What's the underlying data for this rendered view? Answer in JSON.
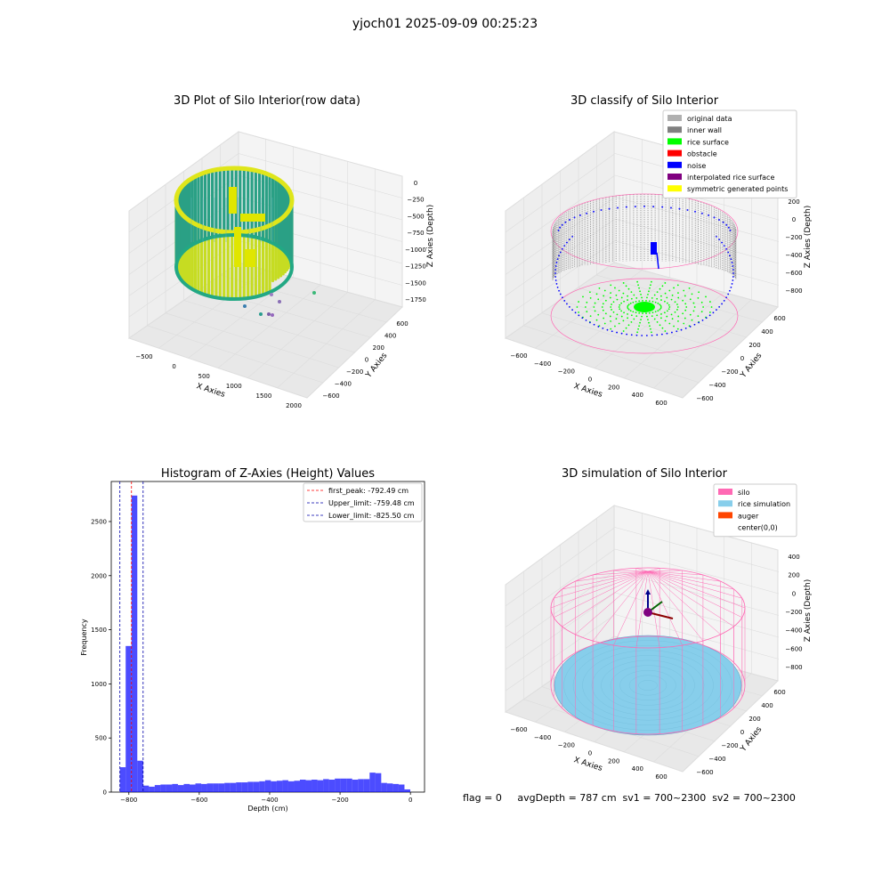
{
  "suptitle": "yjoch01 2025-09-09 00:25:23",
  "footer": "flag = 0     avgDepth = 787 cm  sv1 = 700~2300  sv2 = 700~2300",
  "colors": {
    "pane": "#f2f2f2",
    "grid": "#dcdcdc",
    "hist": "#0000ff",
    "peak": "#ff0000",
    "limit": "#0000aa",
    "silo": "#ff69b4",
    "rice": "#87ceeb",
    "auger": "#ff4500",
    "wall": "#888888",
    "surface": "#00ff00",
    "noise": "#0000ff"
  },
  "panels": {
    "raw": {
      "title": "3D Plot of Silo Interior(row data)",
      "xlabel": "X Axies",
      "ylabel": "Y Axies",
      "zlabel": "Z Axies (Depth)",
      "xticks": [
        "-500",
        "0",
        "500",
        "1000",
        "1500",
        "2000"
      ],
      "yticks": [
        "600",
        "400",
        "200",
        "0",
        "-200",
        "-400",
        "-600"
      ],
      "zticks": [
        "0",
        "-250",
        "-500",
        "-750",
        "-1000",
        "-1250",
        "-1500",
        "-1750"
      ]
    },
    "classify": {
      "title": "3D classify of Silo Interior",
      "xlabel": "X Axies",
      "ylabel": "Y Axies",
      "zlabel": "Z Axies (Depth)",
      "xticks": [
        "-600",
        "-400",
        "-200",
        "0",
        "200",
        "400",
        "600"
      ],
      "yticks": [
        "600",
        "400",
        "200",
        "0",
        "-200",
        "-400",
        "-600"
      ],
      "zticks": [
        "200",
        "0",
        "-200",
        "-400",
        "-600",
        "-800"
      ],
      "legend": [
        {
          "label": "original data",
          "color": "#b0b0b0"
        },
        {
          "label": "inner wall",
          "color": "#808080"
        },
        {
          "label": "rice surface",
          "color": "#00ff00"
        },
        {
          "label": "obstacle",
          "color": "#ff0000"
        },
        {
          "label": "noise",
          "color": "#0000ff"
        },
        {
          "label": "interpolated rice surface",
          "color": "#800080"
        },
        {
          "label": "symmetric generated points",
          "color": "#ffff00"
        }
      ]
    },
    "simulation": {
      "title": "3D simulation of Silo Interior",
      "xlabel": "X Axies",
      "ylabel": "Y Axies",
      "zlabel": "Z Axies (Depth)",
      "xticks": [
        "-600",
        "-400",
        "-200",
        "0",
        "200",
        "400",
        "600"
      ],
      "yticks": [
        "600",
        "400",
        "200",
        "0",
        "-200",
        "-400",
        "-600"
      ],
      "zticks": [
        "400",
        "200",
        "0",
        "-200",
        "-400",
        "-600",
        "-800"
      ],
      "legend": [
        {
          "label": "silo",
          "color": "#ff69b4"
        },
        {
          "label": "rice simulation",
          "color": "#87ceeb"
        },
        {
          "label": "auger",
          "color": "#ff4500"
        },
        {
          "label": "center(0,0)",
          "color": "#ffffff"
        }
      ]
    }
  },
  "chart_data": {
    "type": "bar",
    "title": "Histogram of Z-Axies (Height) Values",
    "xlabel": "Depth (cm)",
    "ylabel": "Frequency",
    "xlim": [
      -850,
      40
    ],
    "ylim": [
      0,
      2870
    ],
    "xticks": [
      -800,
      -600,
      -400,
      -200,
      0
    ],
    "yticks": [
      0,
      500,
      1000,
      1500,
      2000,
      2500
    ],
    "bin_width": 16.5,
    "bin_starts": [
      -825.5,
      -809,
      -792.5,
      -776,
      -759.5,
      -743,
      -726.5,
      -710,
      -693.5,
      -677,
      -660.5,
      -644,
      -627.5,
      -611,
      -594.5,
      -578,
      -561.5,
      -545,
      -528.5,
      -512,
      -495.5,
      -479,
      -462.5,
      -446,
      -429.5,
      -413,
      -396.5,
      -380,
      -363.5,
      -347,
      -330.5,
      -314,
      -297.5,
      -281,
      -264.5,
      -248,
      -231.5,
      -215,
      -198.5,
      -182,
      -165.5,
      -149,
      -132.5,
      -116,
      -99.5,
      -83,
      -66.5,
      -50,
      -33.5,
      -17
    ],
    "values": [
      230,
      1350,
      2740,
      290,
      60,
      50,
      65,
      70,
      70,
      75,
      65,
      75,
      70,
      80,
      75,
      80,
      80,
      80,
      85,
      85,
      90,
      90,
      95,
      95,
      100,
      110,
      100,
      105,
      110,
      100,
      105,
      115,
      110,
      115,
      110,
      120,
      115,
      125,
      125,
      125,
      115,
      120,
      120,
      180,
      175,
      85,
      80,
      75,
      70,
      25
    ],
    "series": [
      {
        "name": "Frequency",
        "color": "#0000ff"
      }
    ],
    "lines": [
      {
        "label": "first_peak: -792.49 cm",
        "x": -792.49,
        "color": "#ff0000"
      },
      {
        "label": "Upper_limit: -759.48 cm",
        "x": -759.48,
        "color": "#0000aa"
      },
      {
        "label": "Lower_limit: -825.50 cm",
        "x": -825.5,
        "color": "#0000aa"
      }
    ],
    "legend_position": "top-right"
  }
}
